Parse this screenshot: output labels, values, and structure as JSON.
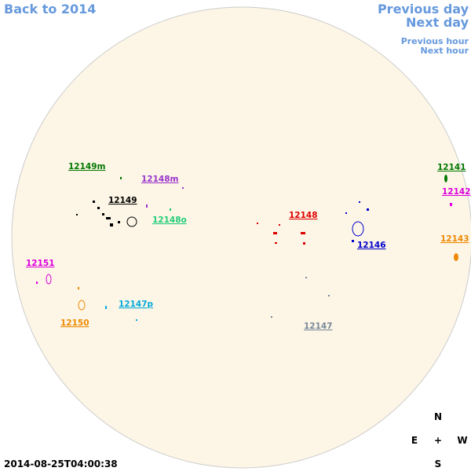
{
  "nav": {
    "back": "Back to 2014",
    "previous_day": "Previous day",
    "next_day": "Next day",
    "previous_hour": "Previous hour",
    "next_hour": "Next hour"
  },
  "regions": [
    {
      "label": "12149m",
      "color": "#007700"
    },
    {
      "label": "12148m",
      "color": "#9933cc"
    },
    {
      "label": "12149",
      "color": "#000000"
    },
    {
      "label": "12148o",
      "color": "#22cc77"
    },
    {
      "label": "12148",
      "color": "#dd0000"
    },
    {
      "label": "12146",
      "color": "#0000cc"
    },
    {
      "label": "12141",
      "color": "#007700"
    },
    {
      "label": "12142",
      "color": "#dd00dd"
    },
    {
      "label": "12143",
      "color": "#ee8800"
    },
    {
      "label": "12151",
      "color": "#dd00dd"
    },
    {
      "label": "12147p",
      "color": "#00aadd"
    },
    {
      "label": "12150",
      "color": "#ee8800"
    },
    {
      "label": "12147",
      "color": "#778899"
    }
  ],
  "timestamp": "2014-08-25T04:00:38",
  "compass": {
    "north": "N",
    "east": "E",
    "center": "+",
    "west": "W",
    "south": "S"
  }
}
